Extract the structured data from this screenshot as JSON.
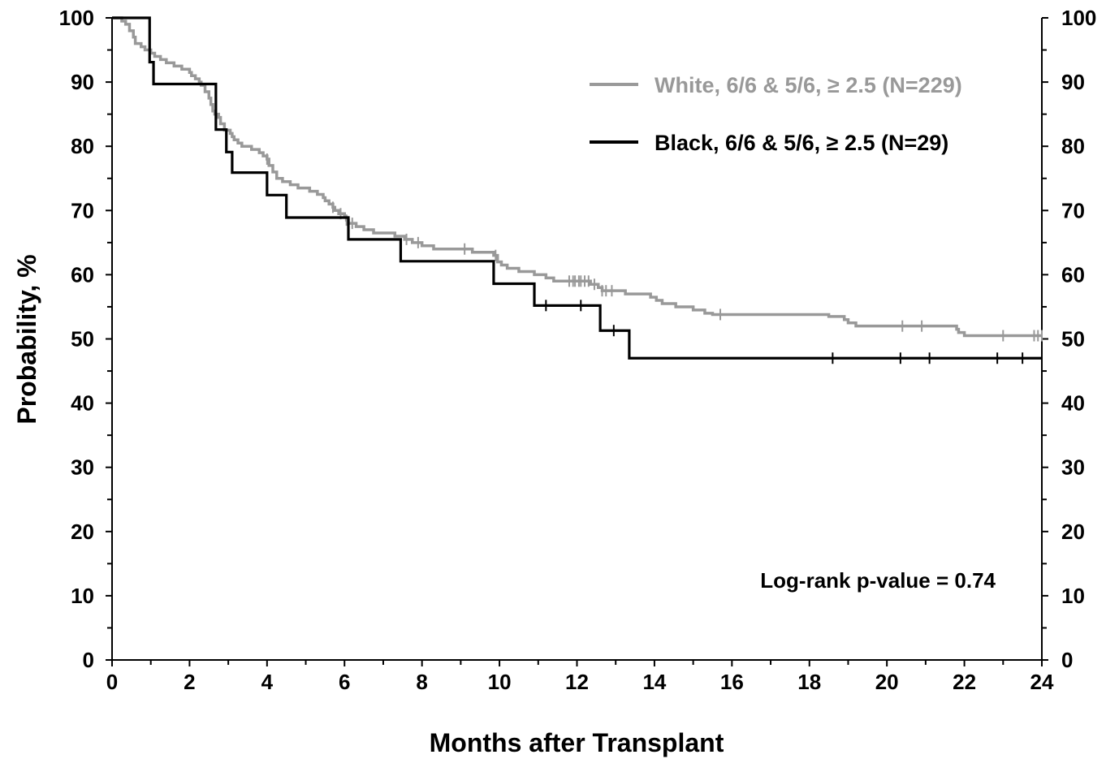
{
  "chart_data": {
    "type": "line",
    "step": true,
    "xlabel": "Months after Transplant",
    "ylabel": "Probability, %",
    "xlim": [
      0,
      24
    ],
    "ylim": [
      0,
      100
    ],
    "x_ticks": [
      0,
      2,
      4,
      6,
      8,
      10,
      12,
      14,
      16,
      18,
      20,
      22,
      24
    ],
    "y_ticks": [
      0,
      10,
      20,
      30,
      40,
      50,
      60,
      70,
      80,
      90,
      100
    ],
    "y_axis_right": true,
    "grid": false,
    "legend_position": "top-right",
    "annotation": "Log-rank p-value = 0.74",
    "series": [
      {
        "name": "White, 6/6 & 5/6, ≥ 2.5  (N=229)",
        "color": "#999999",
        "points": [
          [
            0,
            100
          ],
          [
            0.25,
            99.5
          ],
          [
            0.35,
            99
          ],
          [
            0.45,
            98
          ],
          [
            0.55,
            97
          ],
          [
            0.6,
            96
          ],
          [
            0.75,
            95.5
          ],
          [
            0.85,
            95
          ],
          [
            1.0,
            94.5
          ],
          [
            1.1,
            94
          ],
          [
            1.25,
            93.5
          ],
          [
            1.4,
            93
          ],
          [
            1.6,
            92.5
          ],
          [
            1.8,
            92
          ],
          [
            2.0,
            91.5
          ],
          [
            2.05,
            91
          ],
          [
            2.15,
            90.5
          ],
          [
            2.25,
            90
          ],
          [
            2.3,
            89.5
          ],
          [
            2.4,
            88.5
          ],
          [
            2.5,
            87.5
          ],
          [
            2.55,
            86.5
          ],
          [
            2.6,
            85.5
          ],
          [
            2.65,
            85
          ],
          [
            2.75,
            84.5
          ],
          [
            2.8,
            83.5
          ],
          [
            2.9,
            82.5
          ],
          [
            3.05,
            82
          ],
          [
            3.1,
            81.5
          ],
          [
            3.15,
            81
          ],
          [
            3.25,
            80.5
          ],
          [
            3.35,
            80
          ],
          [
            3.6,
            79.5
          ],
          [
            3.8,
            79
          ],
          [
            3.9,
            78.5
          ],
          [
            4.0,
            78
          ],
          [
            4.05,
            77
          ],
          [
            4.15,
            76
          ],
          [
            4.25,
            75
          ],
          [
            4.4,
            74.5
          ],
          [
            4.6,
            74
          ],
          [
            4.8,
            73.5
          ],
          [
            5.1,
            73
          ],
          [
            5.3,
            72.5
          ],
          [
            5.45,
            72
          ],
          [
            5.5,
            71.5
          ],
          [
            5.6,
            71
          ],
          [
            5.7,
            70.5
          ],
          [
            5.75,
            70
          ],
          [
            5.85,
            69.5
          ],
          [
            6.0,
            69
          ],
          [
            6.05,
            68.5
          ],
          [
            6.1,
            68
          ],
          [
            6.3,
            67.5
          ],
          [
            6.5,
            67
          ],
          [
            6.75,
            66.5
          ],
          [
            7.3,
            66
          ],
          [
            7.55,
            65.5
          ],
          [
            7.75,
            65
          ],
          [
            8.0,
            64.5
          ],
          [
            8.3,
            64
          ],
          [
            9.3,
            63.5
          ],
          [
            9.85,
            63
          ],
          [
            9.95,
            62
          ],
          [
            10.05,
            61.5
          ],
          [
            10.2,
            61
          ],
          [
            10.5,
            60.5
          ],
          [
            10.9,
            60
          ],
          [
            11.2,
            59.5
          ],
          [
            11.4,
            59
          ],
          [
            12.35,
            58.5
          ],
          [
            12.55,
            58
          ],
          [
            12.65,
            57.5
          ],
          [
            13.25,
            57
          ],
          [
            13.9,
            56.5
          ],
          [
            14.05,
            56
          ],
          [
            14.2,
            55.5
          ],
          [
            14.55,
            55
          ],
          [
            15.0,
            54.5
          ],
          [
            15.3,
            54
          ],
          [
            15.5,
            53.8
          ],
          [
            18.5,
            53.5
          ],
          [
            18.9,
            53
          ],
          [
            19.0,
            52.5
          ],
          [
            19.2,
            52
          ],
          [
            21.8,
            51.5
          ],
          [
            21.85,
            51
          ],
          [
            22.0,
            50.5
          ],
          [
            23.5,
            50.5
          ],
          [
            24,
            50.5
          ]
        ],
        "censor_x": [
          4.0,
          5.7,
          5.9,
          6.05,
          6.2,
          7.6,
          7.9,
          9.1,
          9.9,
          11.8,
          11.9,
          11.95,
          12.05,
          12.1,
          12.2,
          12.3,
          12.45,
          12.65,
          12.75,
          12.9,
          15.7,
          20.4,
          20.9,
          23.0,
          23.8,
          23.9,
          24.0
        ]
      },
      {
        "name": "Black, 6/6 & 5/6, ≥ 2.5 (N=29)",
        "color": "#000000",
        "points": [
          [
            0,
            100
          ],
          [
            0.97,
            100
          ],
          [
            0.97,
            93.1
          ],
          [
            1.07,
            93.1
          ],
          [
            1.07,
            89.7
          ],
          [
            2.68,
            89.7
          ],
          [
            2.68,
            82.6
          ],
          [
            2.95,
            82.6
          ],
          [
            2.95,
            79.1
          ],
          [
            3.1,
            79.1
          ],
          [
            3.1,
            75.9
          ],
          [
            4.0,
            75.9
          ],
          [
            4.0,
            72.4
          ],
          [
            4.5,
            72.4
          ],
          [
            4.5,
            68.9
          ],
          [
            6.1,
            68.9
          ],
          [
            6.1,
            65.5
          ],
          [
            7.45,
            65.5
          ],
          [
            7.45,
            62.1
          ],
          [
            9.85,
            62.1
          ],
          [
            9.85,
            58.6
          ],
          [
            10.9,
            58.6
          ],
          [
            10.9,
            55.2
          ],
          [
            12.6,
            55.2
          ],
          [
            12.6,
            51.3
          ],
          [
            13.35,
            51.3
          ],
          [
            13.35,
            47
          ],
          [
            24,
            47
          ]
        ],
        "censor_x": [
          11.2,
          12.1,
          12.95,
          18.6,
          20.35,
          21.1,
          22.85,
          23.5,
          24.0
        ]
      }
    ]
  }
}
